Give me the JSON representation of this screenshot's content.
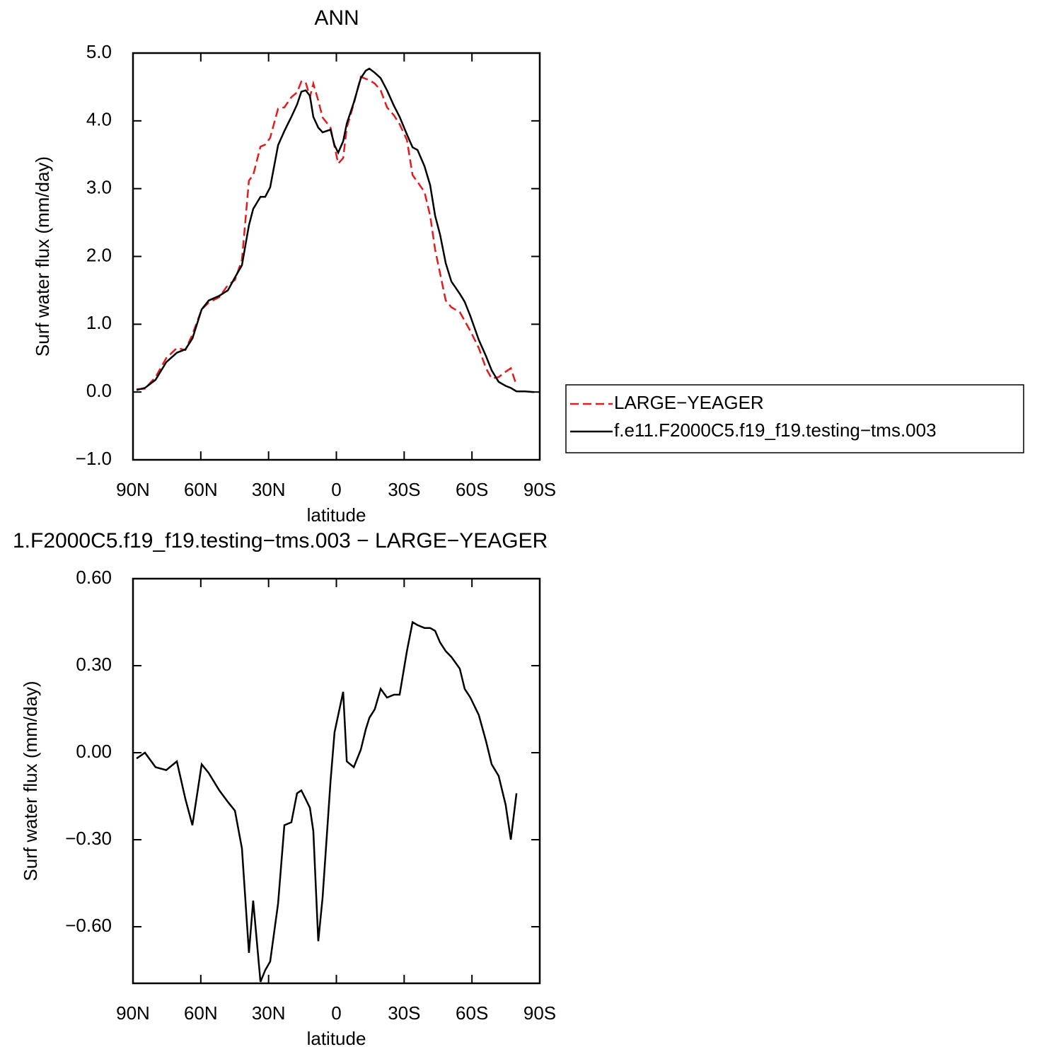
{
  "chart_data": [
    {
      "type": "line",
      "title": "ANN",
      "x_label": "latitude",
      "y_label": "Surf water flux (mm/day)",
      "x": [
        88.4,
        84.7,
        80,
        75.3,
        70.6,
        66.8,
        63.7,
        59.6,
        56.5,
        51.8,
        48,
        44.9,
        41.8,
        38.7,
        36.8,
        33.6,
        31.5,
        29.3,
        25.8,
        23,
        19.9,
        17.4,
        15.5,
        13.6,
        11.7,
        10.2,
        8,
        6.1,
        2.6,
        0.8,
        -0.8,
        -3,
        -4.6,
        -7.7,
        -10.8,
        -13,
        -14.6,
        -17,
        -19.6,
        -22.4,
        -25.5,
        -28,
        -31.2,
        -33.7,
        -35.9,
        -39,
        -41.5,
        -43.7,
        -45.9,
        -48.4,
        -50.9,
        -54.6,
        -56.8,
        -59.3,
        -63,
        -66.2,
        -68.7,
        -71.8,
        -74.9,
        -77.2,
        -79.7,
        -83.4,
        -87.5
      ],
      "series": [
        {
          "name": "LARGE−YEAGER",
          "color": "#e41a1c",
          "line_style": "dashed",
          "values": [
            0.04,
            0.05,
            0.22,
            0.5,
            0.65,
            0.62,
            0.85,
            1.22,
            1.32,
            1.4,
            1.58,
            1.65,
            1.95,
            3.12,
            3.2,
            3.62,
            3.65,
            3.75,
            4.18,
            4.2,
            4.35,
            4.42,
            4.58,
            4.57,
            4.35,
            4.55,
            4.3,
            4.05,
            3.9,
            3.62,
            3.37,
            3.45,
            3.9,
            4.25,
            4.65,
            4.62,
            4.6,
            4.55,
            4.45,
            4.2,
            4.08,
            3.95,
            3.72,
            3.2,
            3.1,
            2.95,
            2.6,
            2.1,
            1.75,
            1.35,
            1.25,
            1.18,
            1.05,
            0.9,
            0.65,
            0.35,
            0.2,
            0.22,
            0.3,
            0.35,
            0.1,
            null,
            null
          ]
        },
        {
          "name": "f.e11.F2000C5.f19_f19.testing−tms.003",
          "color": "#000000",
          "line_style": "solid",
          "values": [
            0.03,
            0.06,
            0.18,
            0.44,
            0.58,
            0.63,
            0.79,
            1.22,
            1.35,
            1.42,
            1.5,
            1.69,
            1.87,
            2.46,
            2.7,
            2.88,
            2.88,
            3.02,
            3.64,
            3.85,
            4.06,
            4.24,
            4.43,
            4.45,
            4.37,
            4.06,
            3.9,
            3.83,
            3.87,
            3.64,
            3.53,
            3.7,
            3.96,
            4.27,
            4.63,
            4.74,
            4.77,
            4.71,
            4.63,
            4.45,
            4.22,
            4.06,
            3.8,
            3.61,
            3.57,
            3.33,
            3.05,
            2.6,
            2.32,
            1.9,
            1.63,
            1.45,
            1.33,
            1.12,
            0.77,
            0.53,
            0.32,
            0.15,
            0.09,
            0.06,
            0.01,
            0.01,
            0.0
          ]
        }
      ],
      "xlim": [
        90,
        -90
      ],
      "xticks": [
        {
          "value": 90,
          "label": "90N"
        },
        {
          "value": 60,
          "label": "60N"
        },
        {
          "value": 30,
          "label": "30N"
        },
        0,
        {
          "value": -30,
          "label": "30S"
        },
        {
          "value": -60,
          "label": "60S"
        },
        {
          "value": -90,
          "label": "90S"
        }
      ],
      "ylim": [
        -1,
        5
      ],
      "yticks": [
        {
          "value": 5,
          "label": "5.0"
        },
        {
          "value": 4,
          "label": "4.0"
        },
        {
          "value": 3,
          "label": "3.0"
        },
        {
          "value": 2,
          "label": "2.0"
        },
        {
          "value": 1,
          "label": "1.0"
        },
        {
          "value": 0,
          "label": "0.0"
        },
        {
          "value": -1,
          "label": "−1.0"
        }
      ],
      "legend": "outside-right"
    },
    {
      "type": "line",
      "title": "1.F2000C5.f19_f19.testing−tms.003 − LARGE−YEAGER",
      "x_label": "latitude",
      "y_label": "Surf water flux (mm/day)",
      "x": [
        88.4,
        84.7,
        80,
        75.3,
        70.6,
        66.8,
        63.7,
        59.6,
        56.5,
        51.8,
        48,
        44.9,
        41.8,
        38.7,
        36.8,
        33.6,
        31.5,
        29.3,
        25.8,
        23,
        19.9,
        17.4,
        15.5,
        13.6,
        11.7,
        10.2,
        8,
        6.1,
        2.6,
        0.8,
        -0.8,
        -3,
        -4.6,
        -7.7,
        -10.8,
        -13,
        -14.6,
        -17,
        -19.6,
        -22.4,
        -25.5,
        -28,
        -31.2,
        -33.7,
        -35.9,
        -39,
        -41.5,
        -43.7,
        -45.9,
        -48.4,
        -50.9,
        -54.6,
        -56.8,
        -59.3,
        -63,
        -66.2,
        -68.7,
        -71.8,
        -74.9,
        -77.2,
        -79.7,
        -83.4,
        -87.5
      ],
      "color": "#000000",
      "values": [
        -0.02,
        0.0,
        -0.05,
        -0.06,
        -0.03,
        -0.16,
        -0.25,
        -0.04,
        -0.07,
        -0.13,
        -0.17,
        -0.2,
        -0.33,
        -0.69,
        -0.51,
        -0.79,
        -0.75,
        -0.72,
        -0.52,
        -0.25,
        -0.24,
        -0.14,
        -0.13,
        -0.16,
        -0.19,
        -0.27,
        -0.65,
        -0.5,
        -0.1,
        0.07,
        0.13,
        0.21,
        -0.03,
        -0.05,
        0.01,
        0.08,
        0.12,
        0.15,
        0.22,
        0.19,
        0.2,
        0.2,
        0.35,
        0.45,
        0.44,
        0.43,
        0.43,
        0.42,
        0.38,
        0.35,
        0.33,
        0.29,
        0.22,
        0.19,
        0.13,
        0.04,
        -0.04,
        -0.08,
        -0.18,
        -0.3,
        -0.14,
        null,
        null
      ],
      "xlim": [
        90,
        -90
      ],
      "xticks": [
        {
          "value": 90,
          "label": "90N"
        },
        {
          "value": 60,
          "label": "60N"
        },
        {
          "value": 30,
          "label": "30N"
        },
        0,
        {
          "value": -30,
          "label": "30S"
        },
        {
          "value": -60,
          "label": "60S"
        },
        {
          "value": -90,
          "label": "90S"
        }
      ],
      "ylim": [
        -0.795,
        0.6
      ],
      "yticks": [
        {
          "value": 0.6,
          "label": "0.60"
        },
        {
          "value": 0.3,
          "label": "0.30"
        },
        {
          "value": 0,
          "label": "0.00"
        },
        {
          "value": -0.3,
          "label": "−0.30"
        },
        {
          "value": -0.6,
          "label": "−0.60"
        }
      ]
    }
  ]
}
